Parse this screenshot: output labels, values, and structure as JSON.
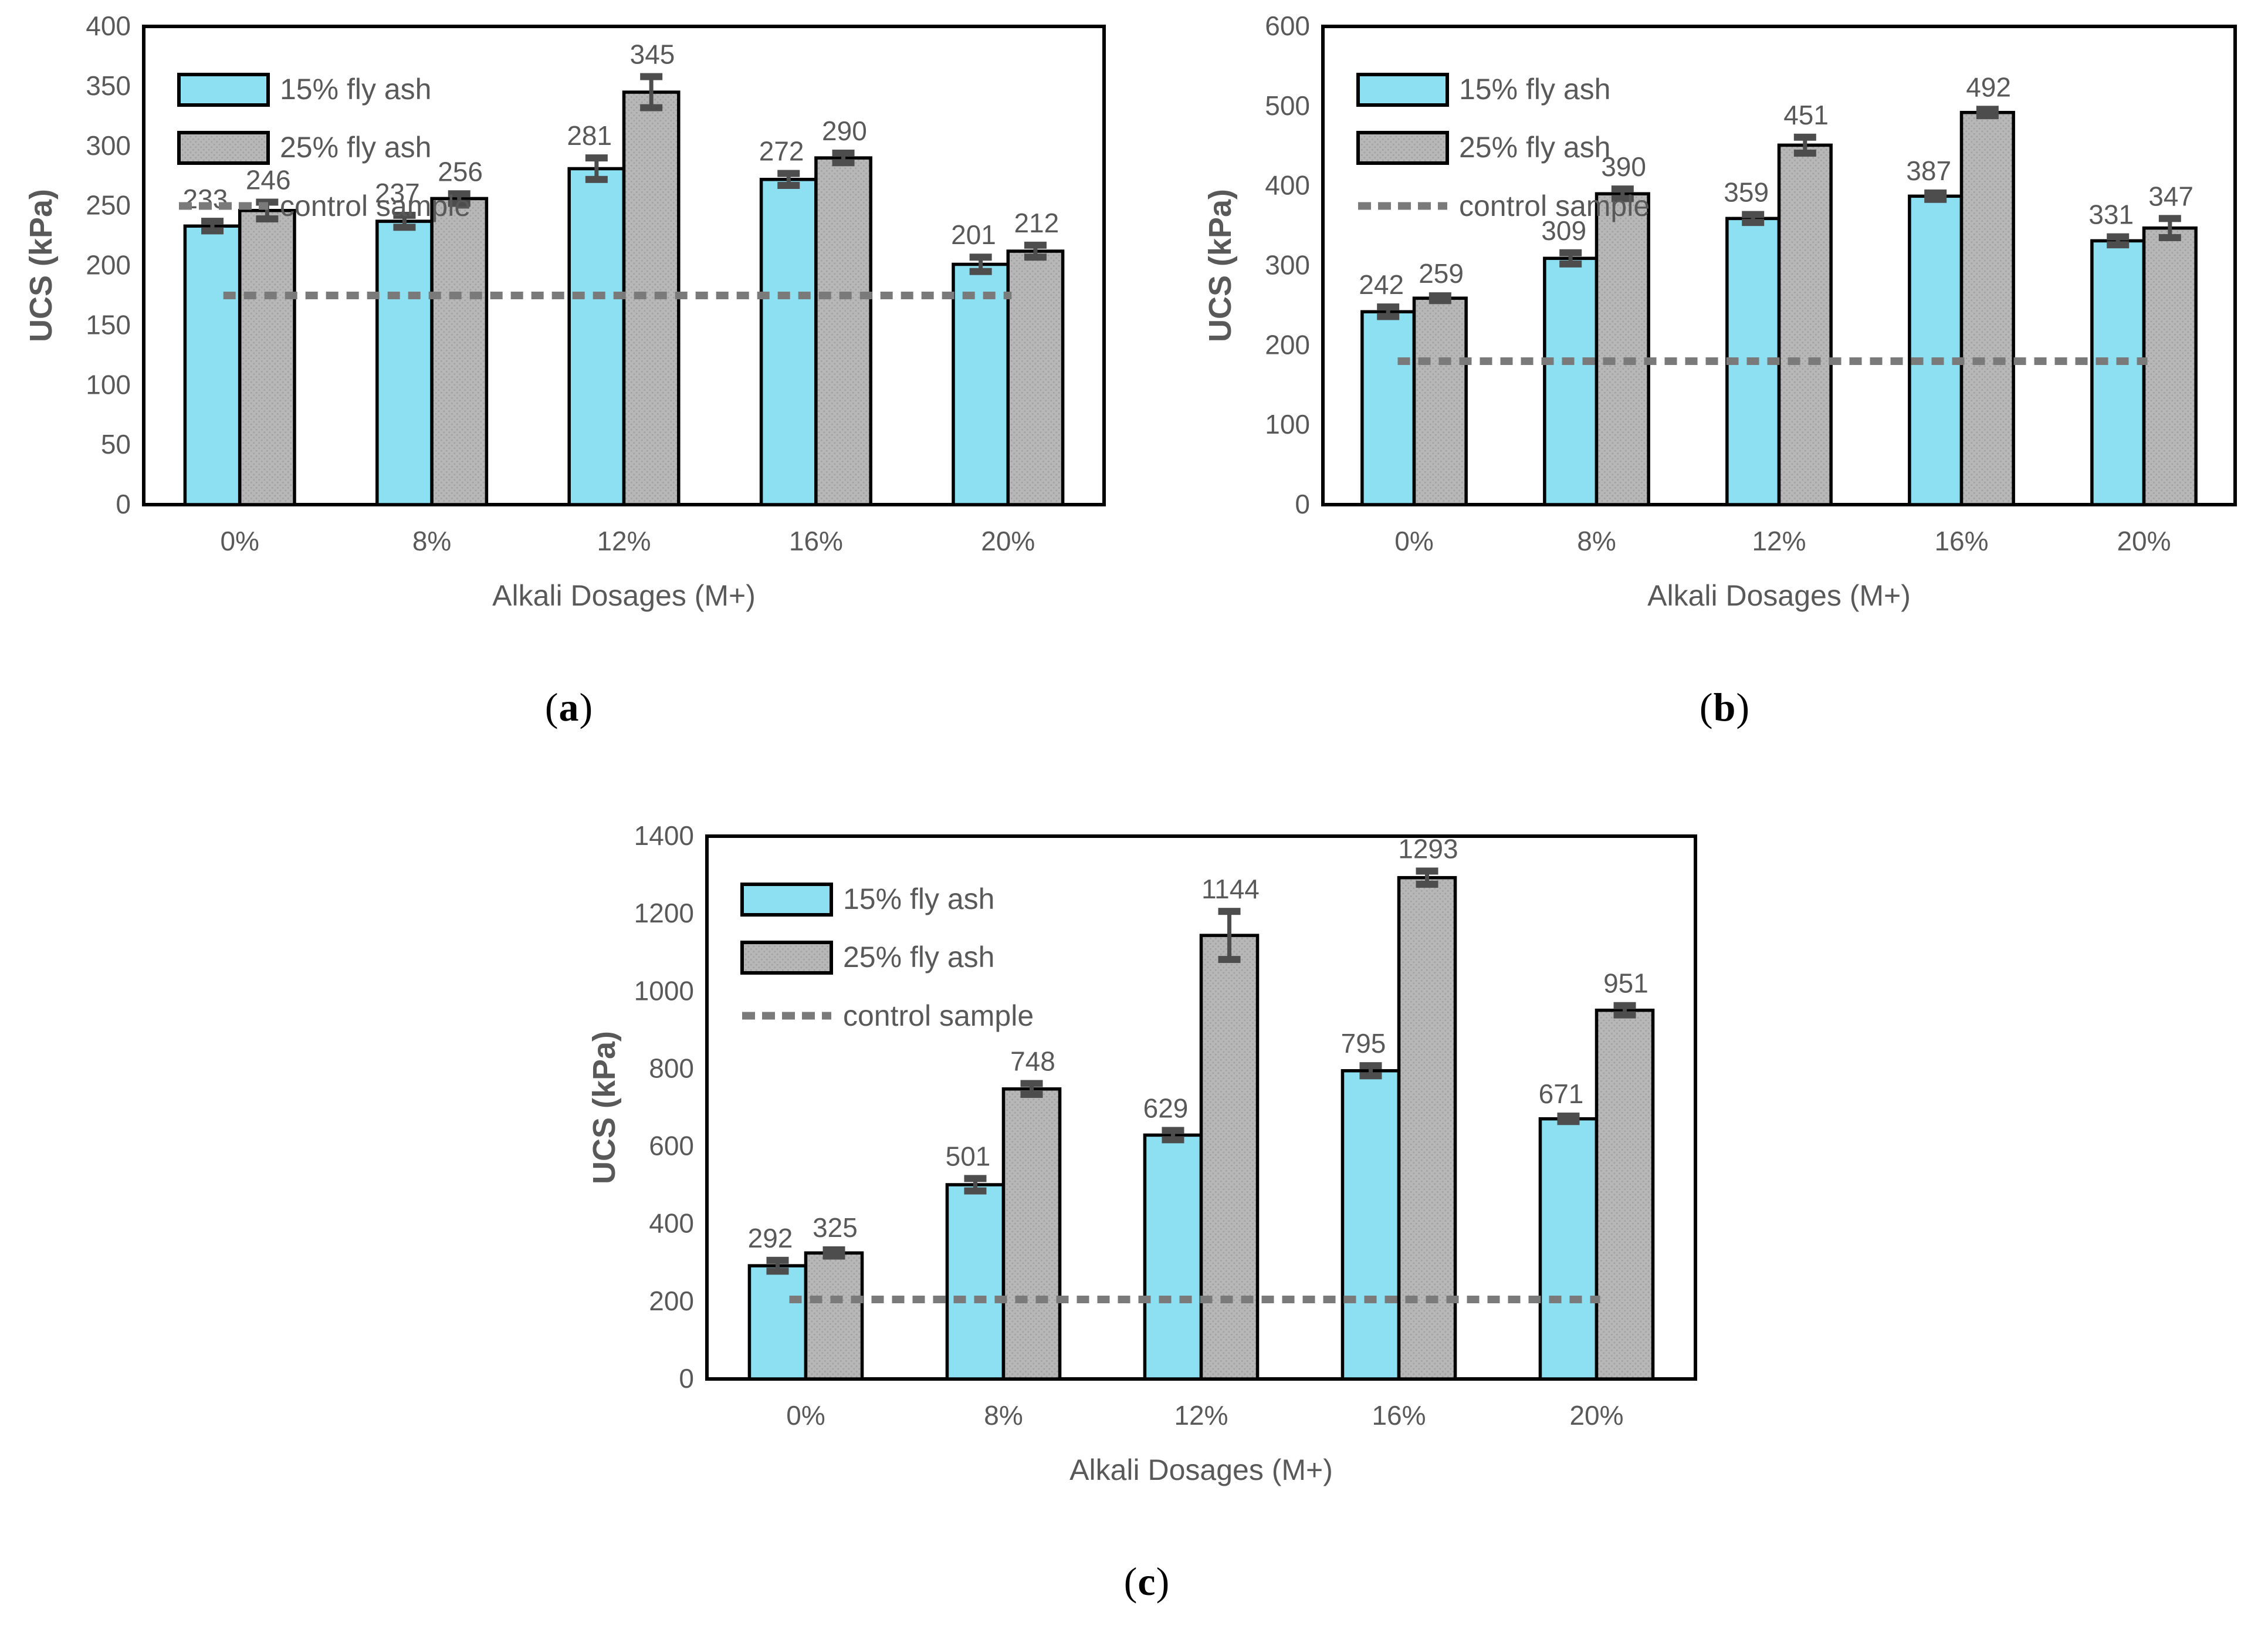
{
  "page": {
    "background": "#ffffff"
  },
  "captions": [
    {
      "open": "(",
      "letter": "a",
      "close": ")"
    },
    {
      "open": "(",
      "letter": "b",
      "close": ")"
    },
    {
      "open": "(",
      "letter": "c",
      "close": ")"
    }
  ],
  "colors": {
    "series_15_fly_ash": "#8ce0f2",
    "series_25_fly_ash": "#b7b7b7",
    "series_25_dot": "#a2a2a2",
    "bar_border": "#000000",
    "control_line": "#7a7a7a",
    "error_bar": "#4d4d4d",
    "tick_text": "#595959",
    "axis_frame": "#000000"
  },
  "chart_data": [
    {
      "type": "bar",
      "panel": "a",
      "title": "",
      "xlabel": "Alkali Dosages (M+)",
      "ylabel": "UCS (kPa)",
      "categories": [
        "0%",
        "8%",
        "12%",
        "16%",
        "20%"
      ],
      "series": [
        {
          "name": "15% fly ash",
          "values": [
            233,
            237,
            281,
            272,
            201
          ],
          "errors": [
            4,
            5,
            9,
            5,
            6
          ]
        },
        {
          "name": "25% fly ash",
          "values": [
            246,
            256,
            345,
            290,
            212
          ],
          "errors": [
            7,
            4,
            13,
            4,
            5
          ]
        }
      ],
      "control_line": {
        "label": "control sample",
        "value": 175
      },
      "ylim": [
        0,
        400
      ],
      "ytick_step": 50,
      "yticks": [
        0,
        50,
        100,
        150,
        200,
        250,
        300,
        350,
        400
      ],
      "legend_position": "top-left",
      "grid": false
    },
    {
      "type": "bar",
      "panel": "b",
      "title": "",
      "xlabel": "Alkali Dosages (M+)",
      "ylabel": "UCS (kPa)",
      "categories": [
        "0%",
        "8%",
        "12%",
        "16%",
        "20%"
      ],
      "series": [
        {
          "name": "15% fly ash",
          "values": [
            242,
            309,
            359,
            387,
            331
          ],
          "errors": [
            6,
            7,
            5,
            4,
            5
          ]
        },
        {
          "name": "25% fly ash",
          "values": [
            259,
            390,
            451,
            492,
            347
          ],
          "errors": [
            3,
            6,
            10,
            4,
            12
          ]
        }
      ],
      "control_line": {
        "label": "control sample",
        "value": 180
      },
      "ylim": [
        0,
        600
      ],
      "ytick_step": 100,
      "yticks": [
        0,
        100,
        200,
        300,
        400,
        500,
        600
      ],
      "legend_position": "top-left",
      "grid": false
    },
    {
      "type": "bar",
      "panel": "c",
      "title": "",
      "xlabel": "Alkali Dosages (M+)",
      "ylabel": "UCS (kPa)",
      "categories": [
        "0%",
        "8%",
        "12%",
        "16%",
        "20%"
      ],
      "series": [
        {
          "name": "15% fly ash",
          "values": [
            292,
            501,
            629,
            795,
            671
          ],
          "errors": [
            14,
            16,
            12,
            13,
            7
          ]
        },
        {
          "name": "25% fly ash",
          "values": [
            325,
            748,
            1144,
            1293,
            951
          ],
          "errors": [
            8,
            14,
            62,
            17,
            12
          ]
        }
      ],
      "control_line": {
        "label": "control sample",
        "value": 205
      },
      "ylim": [
        0,
        1400
      ],
      "ytick_step": 200,
      "yticks": [
        0,
        200,
        400,
        600,
        800,
        1000,
        1200,
        1400
      ],
      "legend_position": "top-left",
      "grid": false
    }
  ]
}
